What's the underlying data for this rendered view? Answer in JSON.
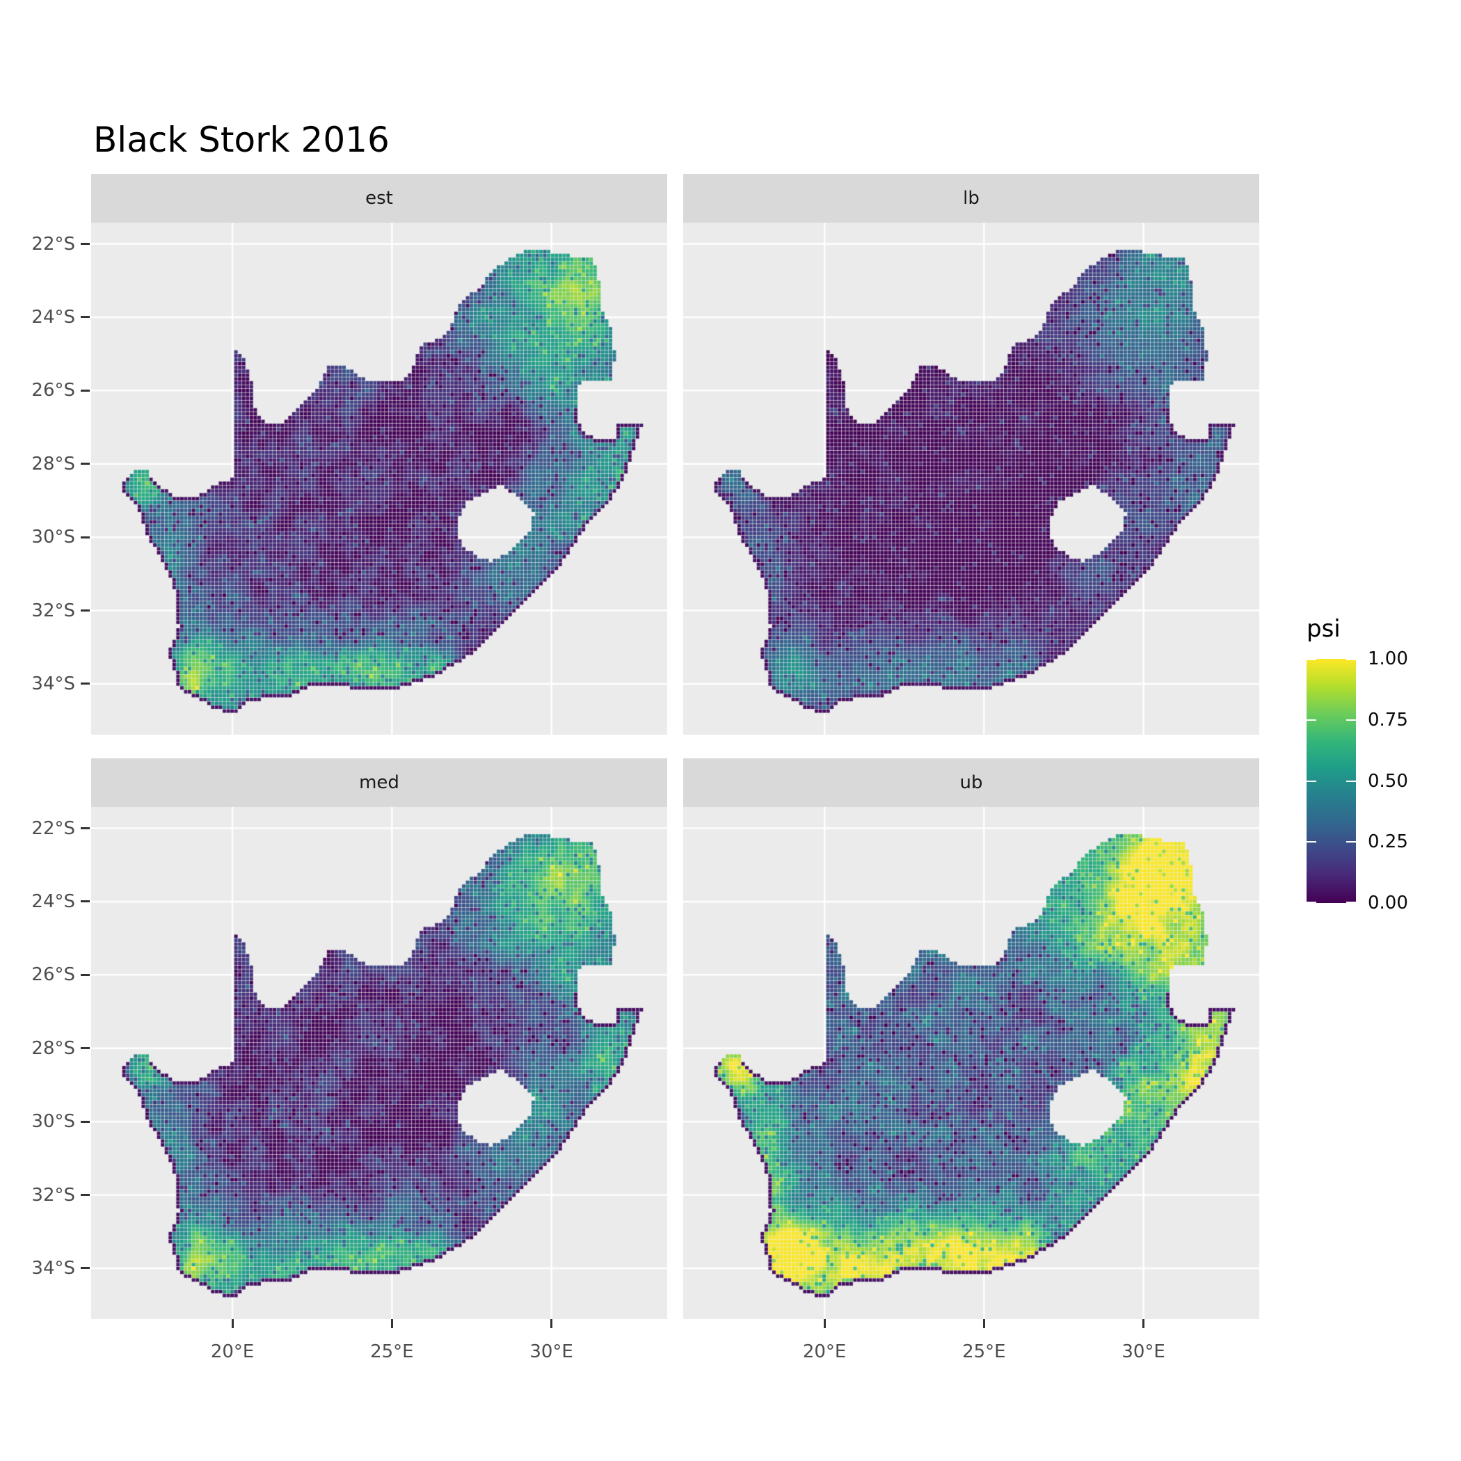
{
  "title": "Black Stork 2016",
  "chart_data": {
    "type": "heatmap",
    "subtype": "faceted-raster-occupancy-map",
    "region": "South Africa (Lesotho shown as hole, Eswatini as notch)",
    "variable": "psi (occupancy probability)",
    "value_range": [
      0.0,
      1.0
    ],
    "colormap": "viridis",
    "facets": [
      {
        "label": "est",
        "row": 0,
        "col": 0,
        "a": 1.0,
        "b": 0.0,
        "noise": 0.17,
        "seed": 11
      },
      {
        "label": "lb",
        "row": 0,
        "col": 1,
        "a": 0.65,
        "b": -0.04,
        "noise": 0.11,
        "seed": 23
      },
      {
        "label": "med",
        "row": 1,
        "col": 0,
        "a": 1.02,
        "b": 0.0,
        "noise": 0.17,
        "seed": 37
      },
      {
        "label": "ub",
        "row": 1,
        "col": 1,
        "a": 1.32,
        "b": 0.17,
        "noise": 0.21,
        "seed": 51
      }
    ],
    "facet_summaries": {
      "est": {
        "northeast": 0.75,
        "east_coast": 0.7,
        "south_coast": 0.5,
        "west_coast": 0.45,
        "interior": 0.2
      },
      "lb": {
        "northeast": 0.45,
        "east_coast": 0.45,
        "south_coast": 0.3,
        "west_coast": 0.25,
        "interior": 0.08
      },
      "med": {
        "northeast": 0.75,
        "east_coast": 0.7,
        "south_coast": 0.5,
        "west_coast": 0.45,
        "interior": 0.2
      },
      "ub": {
        "northeast": 0.98,
        "east_coast": 0.95,
        "south_coast": 0.85,
        "west_coast": 0.8,
        "interior": 0.35
      }
    },
    "x_axis": {
      "ticks": [
        {
          "label": "20°E",
          "lon": 20
        },
        {
          "label": "25°E",
          "lon": 25
        },
        {
          "label": "30°E",
          "lon": 30
        }
      ],
      "range": [
        15.57,
        33.63
      ]
    },
    "y_axis": {
      "ticks": [
        {
          "label": "22°S",
          "lat": -22
        },
        {
          "label": "24°S",
          "lat": -24
        },
        {
          "label": "26°S",
          "lat": -26
        },
        {
          "label": "28°S",
          "lat": -28
        },
        {
          "label": "30°S",
          "lat": -30
        },
        {
          "label": "32°S",
          "lat": -32
        },
        {
          "label": "34°S",
          "lat": -34
        }
      ],
      "range": [
        -35.39,
        -21.42
      ]
    },
    "legend": {
      "title": "psi",
      "breaks": [
        {
          "label": "1.00",
          "value": 1.0
        },
        {
          "label": "0.75",
          "value": 0.75
        },
        {
          "label": "0.50",
          "value": 0.5
        },
        {
          "label": "0.25",
          "value": 0.25
        },
        {
          "label": "0.00",
          "value": 0.0
        }
      ]
    },
    "map_model": {
      "cell_deg": 0.12,
      "outline": [
        [
          16.45,
          -28.58
        ],
        [
          17.0,
          -28.08
        ],
        [
          17.35,
          -28.22
        ],
        [
          17.6,
          -28.55
        ],
        [
          18.2,
          -28.87
        ],
        [
          18.9,
          -28.85
        ],
        [
          19.45,
          -28.6
        ],
        [
          20.0,
          -28.37
        ],
        [
          20.0,
          -24.77
        ],
        [
          20.35,
          -25.05
        ],
        [
          20.6,
          -25.8
        ],
        [
          20.68,
          -26.45
        ],
        [
          21.0,
          -26.85
        ],
        [
          21.6,
          -26.85
        ],
        [
          22.1,
          -26.4
        ],
        [
          22.6,
          -26.0
        ],
        [
          23.0,
          -25.35
        ],
        [
          23.5,
          -25.3
        ],
        [
          24.0,
          -25.65
        ],
        [
          24.75,
          -25.78
        ],
        [
          25.4,
          -25.72
        ],
        [
          25.6,
          -25.45
        ],
        [
          25.9,
          -24.75
        ],
        [
          26.45,
          -24.6
        ],
        [
          26.85,
          -24.25
        ],
        [
          27.1,
          -23.65
        ],
        [
          27.7,
          -23.22
        ],
        [
          28.2,
          -22.7
        ],
        [
          29.05,
          -22.22
        ],
        [
          29.7,
          -22.15
        ],
        [
          30.4,
          -22.3
        ],
        [
          31.3,
          -22.4
        ],
        [
          31.55,
          -23.2
        ],
        [
          31.55,
          -23.75
        ],
        [
          31.9,
          -24.3
        ],
        [
          31.98,
          -25.0
        ],
        [
          31.95,
          -25.68
        ],
        [
          31.3,
          -25.72
        ],
        [
          30.85,
          -25.8
        ],
        [
          30.78,
          -26.3
        ],
        [
          30.82,
          -26.8
        ],
        [
          31.1,
          -27.2
        ],
        [
          31.5,
          -27.3
        ],
        [
          31.97,
          -27.3
        ],
        [
          32.0,
          -26.86
        ],
        [
          32.89,
          -26.86
        ],
        [
          32.6,
          -27.6
        ],
        [
          32.3,
          -28.3
        ],
        [
          31.9,
          -28.95
        ],
        [
          31.15,
          -29.65
        ],
        [
          30.3,
          -30.75
        ],
        [
          29.4,
          -31.6
        ],
        [
          28.4,
          -32.4
        ],
        [
          27.4,
          -33.25
        ],
        [
          26.45,
          -33.75
        ],
        [
          25.65,
          -34.0
        ],
        [
          24.85,
          -34.2
        ],
        [
          23.6,
          -34.1
        ],
        [
          22.55,
          -34.05
        ],
        [
          21.8,
          -34.35
        ],
        [
          20.55,
          -34.45
        ],
        [
          20.0,
          -34.82
        ],
        [
          19.3,
          -34.62
        ],
        [
          18.85,
          -34.35
        ],
        [
          18.45,
          -34.25
        ],
        [
          18.25,
          -33.95
        ],
        [
          18.0,
          -33.1
        ],
        [
          18.3,
          -32.5
        ],
        [
          18.25,
          -31.6
        ],
        [
          17.9,
          -30.8
        ],
        [
          17.35,
          -30.0
        ],
        [
          17.05,
          -29.25
        ]
      ],
      "lesotho_hole": [
        [
          27.02,
          -29.63
        ],
        [
          27.35,
          -29.05
        ],
        [
          27.75,
          -28.88
        ],
        [
          28.4,
          -28.6
        ],
        [
          29.0,
          -28.92
        ],
        [
          29.45,
          -29.3
        ],
        [
          29.33,
          -29.78
        ],
        [
          28.9,
          -30.25
        ],
        [
          28.15,
          -30.67
        ],
        [
          27.7,
          -30.53
        ],
        [
          27.3,
          -30.28
        ],
        [
          27.02,
          -29.95
        ]
      ],
      "field": {
        "base": 0.17,
        "gaussians": [
          {
            "lon": 31.0,
            "lat": -22.8,
            "sx": 1.6,
            "sy": 1.1,
            "w": 0.4
          },
          {
            "lon": 30.2,
            "lat": -24.2,
            "sx": 1.7,
            "sy": 1.3,
            "w": 0.3
          },
          {
            "lon": 28.6,
            "lat": -24.9,
            "sx": 1.0,
            "sy": 0.8,
            "w": 0.12
          },
          {
            "lon": 30.7,
            "lat": -25.9,
            "sx": 0.9,
            "sy": 0.9,
            "w": 0.16
          },
          {
            "lon": 32.0,
            "lat": -28.5,
            "sx": 1.0,
            "sy": 1.5,
            "w": 0.42
          },
          {
            "lon": 29.6,
            "lat": -29.4,
            "sx": 0.8,
            "sy": 0.9,
            "w": 0.26
          },
          {
            "lon": 28.4,
            "lat": -31.0,
            "sx": 0.8,
            "sy": 0.7,
            "w": 0.2
          },
          {
            "lon": 17.25,
            "lat": -28.5,
            "sx": 0.55,
            "sy": 0.45,
            "w": 0.45
          },
          {
            "lon": 17.95,
            "lat": -31.0,
            "sx": 0.75,
            "sy": 1.5,
            "w": 0.26
          },
          {
            "lon": 18.6,
            "lat": -33.6,
            "sx": 0.8,
            "sy": 0.7,
            "w": 0.3
          },
          {
            "lon": 24.0,
            "lat": -33.0,
            "sx": 2.0,
            "sy": 0.8,
            "w": 0.1
          },
          {
            "lon": 21.3,
            "lat": -27.2,
            "sx": 2.2,
            "sy": 1.6,
            "w": -0.1
          },
          {
            "lon": 23.0,
            "lat": -31.2,
            "sx": 2.4,
            "sy": 1.5,
            "w": -0.09
          },
          {
            "lon": 27.4,
            "lat": -27.6,
            "sx": 1.9,
            "sy": 1.6,
            "w": -0.13
          },
          {
            "lon": 25.8,
            "lat": -29.8,
            "sx": 1.6,
            "sy": 1.2,
            "w": -0.07
          }
        ],
        "south_coast_band": {
          "lat": -33.85,
          "sy": 0.75,
          "lon0": 18.0,
          "lon1": 27.3,
          "w": 0.4
        }
      }
    }
  },
  "colors": {
    "panel_bg": "#EBEBEB",
    "strip_bg": "#D9D9D9",
    "gridline": "#FFFFFF",
    "axis_text": "#4D4D4D",
    "tick_mark": "#333333",
    "title_text": "#000000",
    "viridis_stops": [
      "#440154",
      "#482878",
      "#3E4A89",
      "#31688E",
      "#26828E",
      "#1F9E89",
      "#35B779",
      "#6DCD59",
      "#B4DE2C",
      "#FDE725"
    ]
  }
}
